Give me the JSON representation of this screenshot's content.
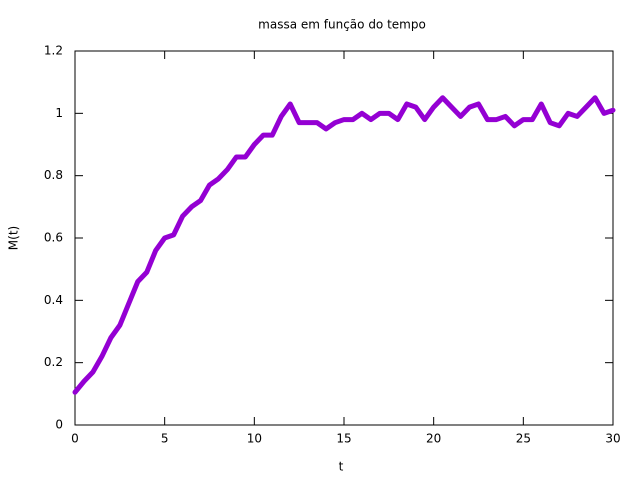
{
  "chart_data": {
    "type": "line",
    "title": "massa em função do tempo",
    "x_label": "t",
    "y_label": "M(t)",
    "x": [
      0,
      0.5,
      1,
      1.5,
      2,
      2.5,
      3,
      3.5,
      4,
      4.5,
      5,
      5.5,
      6,
      6.5,
      7,
      7.5,
      8,
      8.5,
      9,
      9.5,
      10,
      10.5,
      11,
      11.5,
      12,
      12.5,
      13,
      13.5,
      14,
      14.5,
      15,
      15.5,
      16,
      16.5,
      17,
      17.5,
      18,
      18.5,
      19,
      19.5,
      20,
      20.5,
      21,
      21.5,
      22,
      22.5,
      23,
      23.5,
      24,
      24.5,
      25,
      25.5,
      26,
      26.5,
      27,
      27.5,
      28,
      28.5,
      29,
      29.5,
      30
    ],
    "values": [
      0.105,
      0.14,
      0.17,
      0.22,
      0.28,
      0.32,
      0.39,
      0.46,
      0.49,
      0.56,
      0.6,
      0.61,
      0.67,
      0.7,
      0.72,
      0.77,
      0.79,
      0.82,
      0.86,
      0.86,
      0.9,
      0.93,
      0.93,
      0.99,
      1.03,
      0.97,
      0.97,
      0.97,
      0.95,
      0.97,
      0.98,
      0.98,
      1.0,
      0.98,
      1.0,
      1.0,
      0.98,
      1.03,
      1.02,
      0.98,
      1.02,
      1.05,
      1.02,
      0.99,
      1.02,
      1.03,
      0.98,
      0.98,
      0.99,
      0.96,
      0.98,
      0.98,
      1.03,
      0.97,
      0.96,
      1.0,
      0.99,
      1.02,
      1.05,
      1.0,
      1.01
    ],
    "color": "#9400d3",
    "xlim": [
      0,
      30
    ],
    "xticks": [
      0,
      5,
      10,
      15,
      20,
      25,
      30
    ],
    "ylim": [
      0,
      1.2
    ],
    "yticks": [
      0,
      0.2,
      0.4,
      0.6,
      0.8,
      1,
      1.2
    ]
  }
}
